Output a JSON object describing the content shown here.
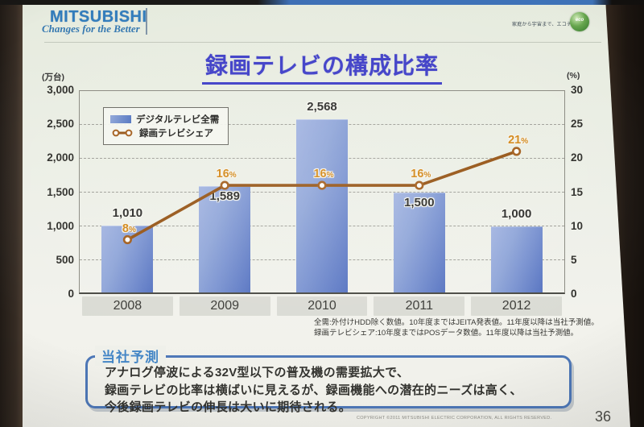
{
  "header": {
    "logo_title": "MITSUBISHI",
    "logo_tagline": "Changes for the Better",
    "eco_text": "家庭から宇宙まで、エコチェンジ",
    "eco_logo_text": "eco"
  },
  "title": {
    "text": "録画テレビの構成比率"
  },
  "chart_data": {
    "type": "bar+line",
    "title": "録画テレビの構成比率",
    "categories": [
      "2008",
      "2009",
      "2010",
      "2011",
      "2012"
    ],
    "series": [
      {
        "name": "デジタルテレビ全需",
        "type": "bar",
        "axis": "left",
        "values": [
          1010,
          1589,
          2568,
          1500,
          1000
        ],
        "labels": [
          "1,010",
          "1,589",
          "2,568",
          "1,500",
          "1,000"
        ]
      },
      {
        "name": "録画テレビシェア",
        "type": "line",
        "axis": "right",
        "values": [
          8,
          16,
          16,
          16,
          21
        ],
        "labels": [
          "8%",
          "16%",
          "16%",
          "16%",
          "21%"
        ]
      }
    ],
    "left_axis": {
      "unit": "(万台)",
      "min": 0,
      "max": 3000,
      "step": 500,
      "ticks": [
        "0",
        "500",
        "1,000",
        "1,500",
        "2,000",
        "2,500",
        "3,000"
      ]
    },
    "right_axis": {
      "unit": "(%)",
      "min": 0,
      "max": 30,
      "step": 5,
      "ticks": [
        "0",
        "5",
        "10",
        "15",
        "20",
        "25",
        "30"
      ]
    },
    "grid": "horizontal dashed",
    "legend_position": "top-left-inside",
    "value_label_inside": [
      false,
      true,
      false,
      true,
      false
    ],
    "colors": {
      "bar": "#7590d5",
      "line": "#9b5410",
      "pct_label": "#d8870e"
    }
  },
  "footnotes": [
    "全需:外付けHDD除く数値。10年度まではJEITA発表値。11年度以降は当社予測値。",
    "録画テレビシェア:10年度まではPOSデータ数値。11年度以降は当社予測値。"
  ],
  "forecast_box": {
    "label": "当社予測",
    "lines": [
      "アナログ停波による32V型以下の普及機の需要拡大で、",
      "録画テレビの比率は横ばいに見えるが、録画機能への潜在的ニーズは高く、",
      "今後録画テレビの伸長は大いに期待される。"
    ]
  },
  "footer": {
    "copyright": "COPYRIGHT ©2011 MITSUBISHI ELECTRIC CORPORATION, ALL RIGHTS RESERVED.",
    "page_number": "36"
  }
}
